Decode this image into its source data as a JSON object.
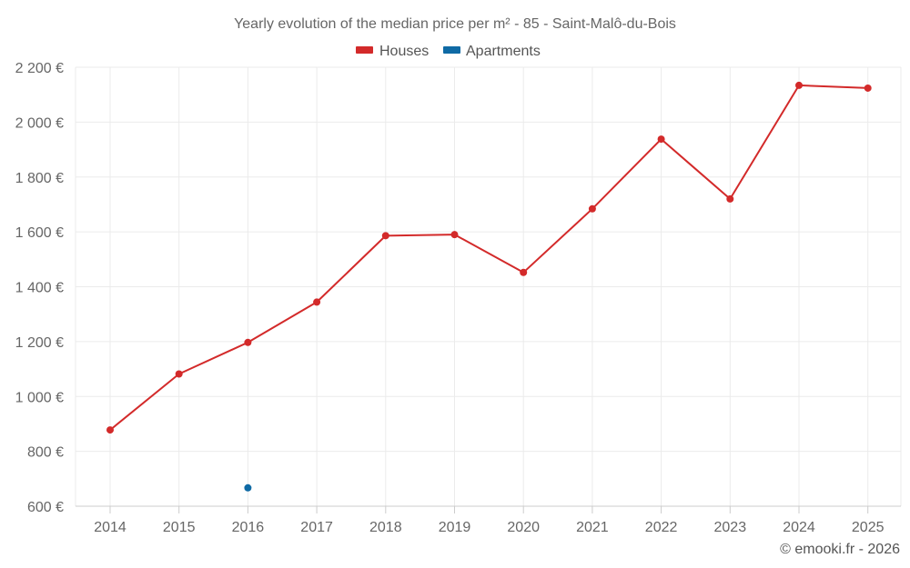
{
  "chart_data": {
    "type": "line",
    "title": "Yearly evolution of the median price per m² - 85 - Saint-Malô-du-Bois",
    "xlabel": "",
    "ylabel": "",
    "categories": [
      "2014",
      "2015",
      "2016",
      "2017",
      "2018",
      "2019",
      "2020",
      "2021",
      "2022",
      "2023",
      "2024",
      "2025"
    ],
    "ylim": [
      600,
      2200
    ],
    "yticks": [
      600,
      800,
      1000,
      1200,
      1400,
      1600,
      1800,
      2000,
      2200
    ],
    "ytick_labels": [
      "600 €",
      "800 €",
      "1 000 €",
      "1 200 €",
      "1 400 €",
      "1 600 €",
      "1 800 €",
      "2 000 €",
      "2 200 €"
    ],
    "grid": true,
    "legend_position": "top-center",
    "series": [
      {
        "name": "Houses",
        "color": "#d32a2a",
        "values": [
          878,
          1082,
          1197,
          1344,
          1586,
          1590,
          1452,
          1684,
          1938,
          1720,
          2134,
          2124
        ]
      },
      {
        "name": "Apartments",
        "color": "#0f6aa5",
        "values": [
          null,
          null,
          667,
          null,
          null,
          null,
          null,
          null,
          null,
          null,
          null,
          null
        ]
      }
    ]
  },
  "credit": "© emooki.fr - 2026"
}
